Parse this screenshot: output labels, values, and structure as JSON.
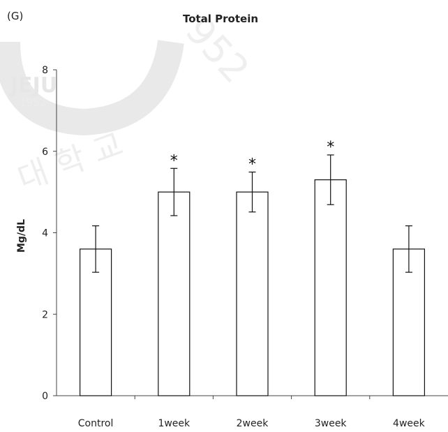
{
  "panel_label": "(G)",
  "chart_data": {
    "type": "bar",
    "title": "Total Protein",
    "xlabel": "",
    "ylabel": "Mg/dL",
    "categories": [
      "Control",
      "1week",
      "2week",
      "3week",
      "4week"
    ],
    "series": [
      {
        "values": [
          3.6,
          5.0,
          5.0,
          5.3,
          3.6
        ],
        "errors": [
          0.57,
          0.58,
          0.49,
          0.61,
          0.57
        ],
        "significance": [
          "",
          "*",
          "*",
          "*",
          ""
        ]
      }
    ],
    "ylim": [
      0,
      8
    ],
    "yticks": [
      0,
      2,
      4,
      6,
      8
    ],
    "grid": false,
    "legend": "none",
    "bar_fill": "#ffffff",
    "bar_stroke": "#111111"
  }
}
